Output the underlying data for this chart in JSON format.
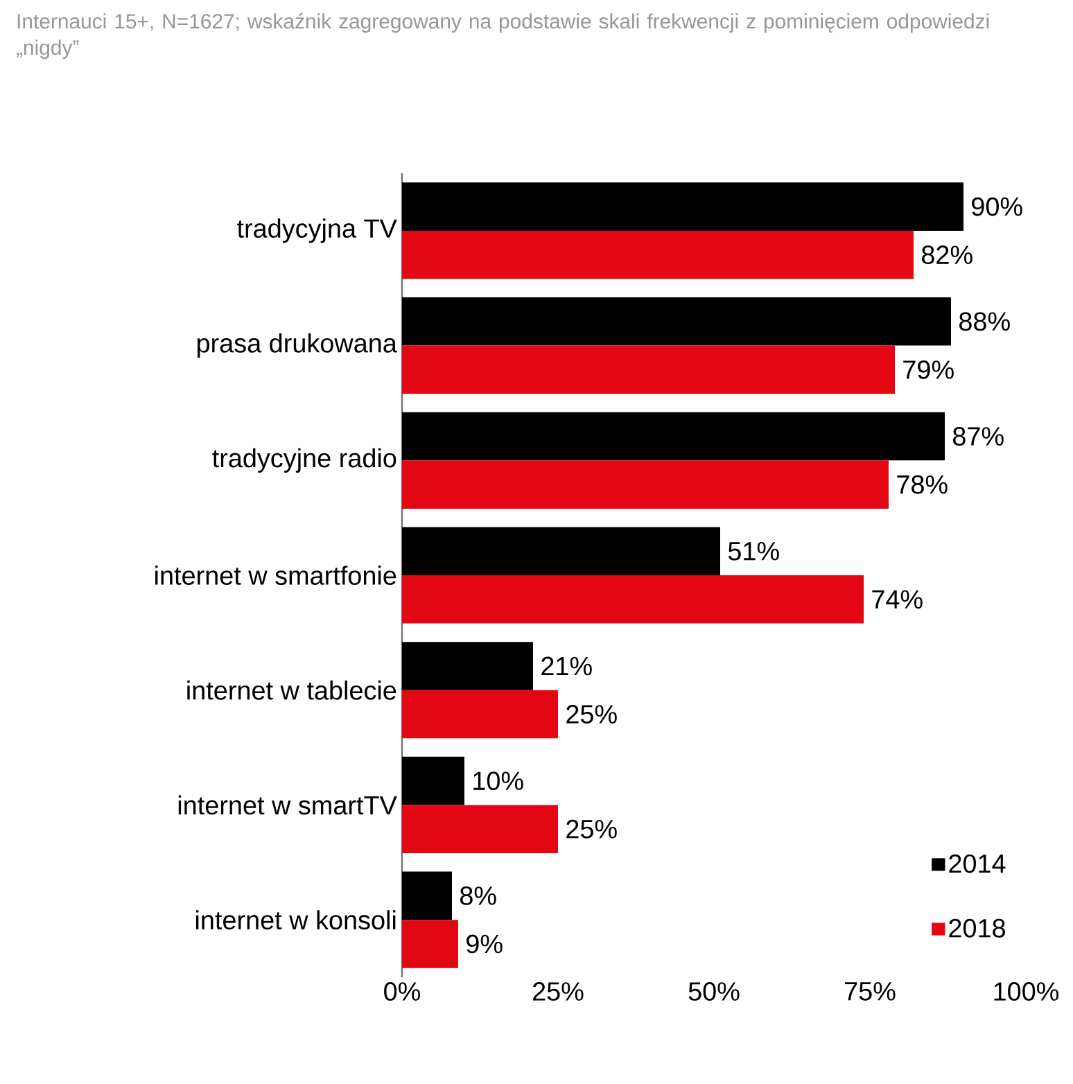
{
  "chart_data": {
    "type": "bar",
    "orientation": "horizontal",
    "title": "Internauci 15+, N=1627; wskaźnik zagregowany na podstawie skali frekwencji z pominięciem odpowiedzi „nigdy”",
    "categories": [
      "tradycyjna TV",
      "prasa drukowana",
      "tradycyjne radio",
      "internet w smartfonie",
      "internet w tablecie",
      "internet w smartTV",
      "internet w konsoli"
    ],
    "series": [
      {
        "name": "2014",
        "color": "#000000",
        "values": [
          90,
          88,
          87,
          51,
          21,
          10,
          8
        ],
        "value_labels": [
          "90%",
          "88%",
          "87%",
          "51%",
          "21%",
          "10%",
          "8%"
        ]
      },
      {
        "name": "2018",
        "color": "#e30613",
        "values": [
          82,
          79,
          78,
          74,
          25,
          25,
          9
        ],
        "value_labels": [
          "82%",
          "79%",
          "78%",
          "74%",
          "25%",
          "25%",
          "9%"
        ]
      }
    ],
    "xlim": [
      0,
      100
    ],
    "xticks": [
      {
        "value": 0,
        "label": "0%"
      },
      {
        "value": 25,
        "label": "25%"
      },
      {
        "value": 50,
        "label": "50%"
      },
      {
        "value": 75,
        "label": "75%"
      },
      {
        "value": 100,
        "label": "100%"
      }
    ],
    "legend": "bottom right",
    "grid": false
  }
}
